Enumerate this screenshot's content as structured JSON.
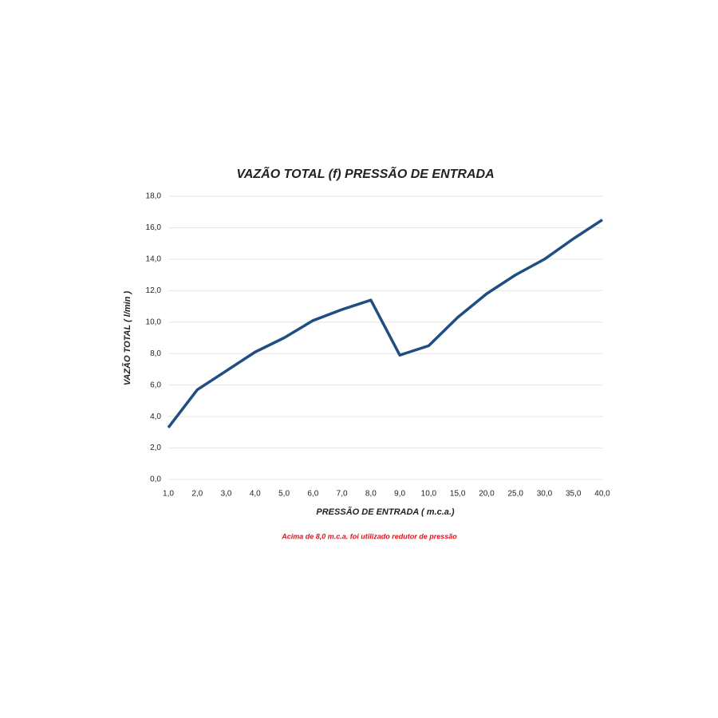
{
  "chart_data": {
    "type": "line",
    "title": "VAZÃO TOTAL (f) PRESSÃO DE ENTRADA",
    "x_label": "PRESSÃO DE ENTRADA ( m.c.a.)",
    "y_label": "VAZÃO TOTAL ( l/min )",
    "note": "Acima de 8,0 m.c.a. foi utilizado redutor de pressão",
    "categories": [
      "1,0",
      "2,0",
      "3,0",
      "4,0",
      "5,0",
      "6,0",
      "7,0",
      "8,0",
      "9,0",
      "10,0",
      "15,0",
      "20,0",
      "25,0",
      "30,0",
      "35,0",
      "40,0"
    ],
    "series": [
      {
        "name": "Vazão total",
        "color": "#1f4e82",
        "values": [
          3.3,
          5.7,
          6.9,
          8.1,
          9.0,
          10.1,
          10.8,
          11.4,
          7.9,
          8.5,
          10.3,
          11.8,
          13.0,
          14.0,
          15.3,
          16.5
        ]
      }
    ],
    "ylim": [
      0,
      18
    ],
    "yticks": [
      {
        "value": 0,
        "label": "0,0"
      },
      {
        "value": 2,
        "label": "2,0"
      },
      {
        "value": 4,
        "label": "4,0"
      },
      {
        "value": 6,
        "label": "6,0"
      },
      {
        "value": 8,
        "label": "8,0"
      },
      {
        "value": 10,
        "label": "10,0"
      },
      {
        "value": 12,
        "label": "12,0"
      },
      {
        "value": 14,
        "label": "14,0"
      },
      {
        "value": 16,
        "label": "16,0"
      },
      {
        "value": 18,
        "label": "18,0"
      }
    ],
    "grid": true
  }
}
